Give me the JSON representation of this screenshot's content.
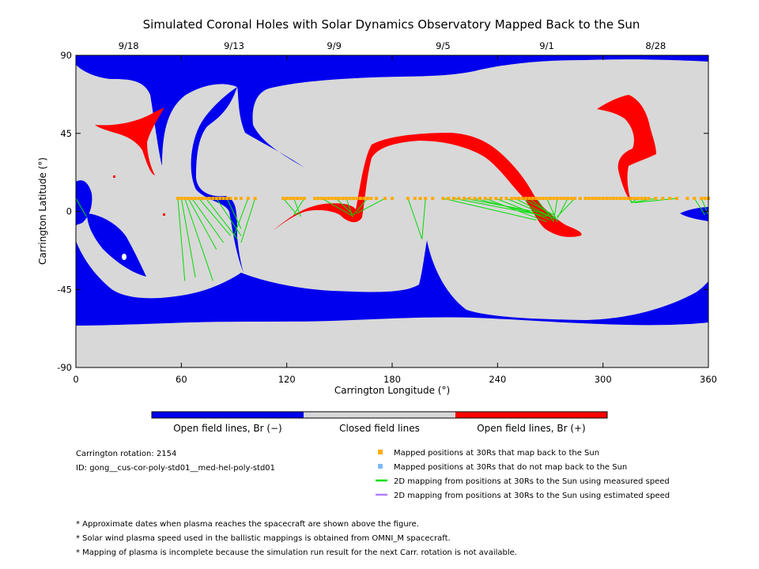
{
  "chart_data": {
    "type": "map",
    "title": "Simulated Coronal Holes with Solar Dynamics Observatory Mapped Back to the Sun",
    "xlabel": "Carrington Longitude (°)",
    "ylabel": "Carrington Latitude (°)",
    "xlim": [
      0,
      360
    ],
    "ylim": [
      -90,
      90
    ],
    "x_ticks": [
      0,
      60,
      120,
      180,
      240,
      300,
      360
    ],
    "y_ticks": [
      90,
      45,
      0,
      -45,
      -90
    ],
    "top_dates": [
      {
        "label": "9/18",
        "lon": 30
      },
      {
        "label": "9/13",
        "lon": 90
      },
      {
        "label": "9/9",
        "lon": 147
      },
      {
        "label": "9/5",
        "lon": 209
      },
      {
        "label": "9/1",
        "lon": 268
      },
      {
        "label": "8/28",
        "lon": 330
      }
    ],
    "colors": {
      "open_negative": "#0000ee",
      "closed": "#d8d8d8",
      "open_positive": "#ff0000",
      "mapped_points": "#ffaa00",
      "unmapped_points": "#7fb8ff",
      "measured_speed_line": "#00dd00",
      "estimated_speed_line": "#b07fff"
    },
    "mapped_points_lat": 7.5,
    "mapped_points_lon": [
      58,
      60,
      62,
      64,
      66,
      68,
      70,
      72,
      74,
      76,
      78,
      80,
      82,
      84,
      86,
      88,
      91,
      94,
      98,
      102,
      118,
      120,
      122,
      124,
      126,
      128,
      130,
      136,
      138,
      140,
      142,
      144,
      146,
      148,
      150,
      152,
      154,
      156,
      158,
      160,
      162,
      164,
      166,
      168,
      171,
      176,
      180,
      189,
      193,
      196,
      199,
      203,
      209,
      212,
      215,
      218,
      221,
      224,
      227,
      230,
      233,
      236,
      239,
      242,
      245,
      248,
      250,
      252,
      254,
      256,
      258,
      260,
      262,
      264,
      266,
      268,
      270,
      272,
      274,
      276,
      278,
      280,
      282,
      284,
      287,
      290,
      292,
      294,
      296,
      298,
      300,
      302,
      304,
      306,
      308,
      310,
      312,
      314,
      316,
      318,
      320,
      322,
      324,
      326,
      330,
      334,
      338,
      342,
      348,
      352,
      356,
      358,
      360
    ],
    "mapping_lines": [
      {
        "from": [
          58,
          7.5
        ],
        "to": [
          62,
          -40
        ]
      },
      {
        "from": [
          60,
          7.5
        ],
        "to": [
          68,
          -38
        ]
      },
      {
        "from": [
          62,
          7.5
        ],
        "to": [
          78,
          -40
        ]
      },
      {
        "from": [
          64,
          7.5
        ],
        "to": [
          80,
          -22
        ]
      },
      {
        "from": [
          66,
          7.5
        ],
        "to": [
          84,
          -18
        ]
      },
      {
        "from": [
          70,
          7.5
        ],
        "to": [
          88,
          -14
        ]
      },
      {
        "from": [
          74,
          7.5
        ],
        "to": [
          92,
          -16
        ]
      },
      {
        "from": [
          80,
          7.5
        ],
        "to": [
          94,
          -14
        ]
      },
      {
        "from": [
          86,
          7.5
        ],
        "to": [
          94,
          -10
        ]
      },
      {
        "from": [
          98,
          7.5
        ],
        "to": [
          90,
          -14
        ]
      },
      {
        "from": [
          102,
          7.5
        ],
        "to": [
          94,
          -18
        ]
      },
      {
        "from": [
          118,
          7.5
        ],
        "to": [
          126,
          -2
        ]
      },
      {
        "from": [
          124,
          7.5
        ],
        "to": [
          128,
          -3
        ]
      },
      {
        "from": [
          130,
          7.5
        ],
        "to": [
          124,
          -2
        ]
      },
      {
        "from": [
          140,
          7.5
        ],
        "to": [
          158,
          -3
        ]
      },
      {
        "from": [
          148,
          7.5
        ],
        "to": [
          158,
          -2
        ]
      },
      {
        "from": [
          154,
          7.5
        ],
        "to": [
          157,
          -2
        ]
      },
      {
        "from": [
          166,
          7.5
        ],
        "to": [
          158,
          -2
        ]
      },
      {
        "from": [
          176,
          7.5
        ],
        "to": [
          160,
          -1
        ]
      },
      {
        "from": [
          189,
          7.5
        ],
        "to": [
          197,
          -16
        ]
      },
      {
        "from": [
          199,
          7.5
        ],
        "to": [
          197,
          -16
        ]
      },
      {
        "from": [
          209,
          7.5
        ],
        "to": [
          262,
          -5
        ]
      },
      {
        "from": [
          215,
          7.5
        ],
        "to": [
          264,
          -2
        ]
      },
      {
        "from": [
          221,
          7.5
        ],
        "to": [
          266,
          -1
        ]
      },
      {
        "from": [
          227,
          7.5
        ],
        "to": [
          268,
          -3
        ]
      },
      {
        "from": [
          233,
          7.5
        ],
        "to": [
          268,
          -6
        ]
      },
      {
        "from": [
          239,
          7.5
        ],
        "to": [
          270,
          -5
        ]
      },
      {
        "from": [
          245,
          7.5
        ],
        "to": [
          272,
          -4
        ]
      },
      {
        "from": [
          250,
          7.5
        ],
        "to": [
          270,
          -3
        ]
      },
      {
        "from": [
          254,
          7.5
        ],
        "to": [
          272,
          -2
        ]
      },
      {
        "from": [
          258,
          7.5
        ],
        "to": [
          274,
          -5
        ]
      },
      {
        "from": [
          262,
          7.5
        ],
        "to": [
          272,
          -6
        ]
      },
      {
        "from": [
          268,
          7.5
        ],
        "to": [
          274,
          -6
        ]
      },
      {
        "from": [
          274,
          7.5
        ],
        "to": [
          272,
          -5
        ]
      },
      {
        "from": [
          280,
          7.5
        ],
        "to": [
          274,
          -4
        ]
      },
      {
        "from": [
          284,
          7.5
        ],
        "to": [
          274,
          -3
        ]
      },
      {
        "from": [
          316,
          7.5
        ],
        "to": [
          316,
          5
        ]
      },
      {
        "from": [
          320,
          7.5
        ],
        "to": [
          316,
          5
        ]
      },
      {
        "from": [
          330,
          7.5
        ],
        "to": [
          316,
          5
        ]
      },
      {
        "from": [
          342,
          7.5
        ],
        "to": [
          318,
          5
        ]
      },
      {
        "from": [
          352,
          7.5
        ],
        "to": [
          358,
          -2
        ]
      },
      {
        "from": [
          356,
          7.5
        ],
        "to": [
          360,
          -2
        ]
      },
      {
        "from": [
          0,
          7.5
        ],
        "to": [
          6,
          -3
        ]
      }
    ],
    "regions_note": "Map regions: open field lines Br(-) (blue), closed field lines (gray), open field lines Br(+) (red)"
  },
  "colorbar": {
    "labels": [
      "Open field lines, Br (−)",
      "Closed field lines",
      "Open field lines, Br (+)"
    ]
  },
  "info": {
    "rotation": "Carrington rotation: 2154",
    "id": "ID: gong__cus-cor-poly-std01__med-hel-poly-std01"
  },
  "legend": [
    {
      "kind": "square",
      "color": "#ffaa00",
      "text": "Mapped positions at 30Rs that map back to the Sun"
    },
    {
      "kind": "square",
      "color": "#7fb8ff",
      "text": "Mapped positions at 30Rs that do not map back to the Sun"
    },
    {
      "kind": "line",
      "color": "#00dd00",
      "text": "2D mapping from positions at 30Rs to the Sun using measured speed"
    },
    {
      "kind": "line",
      "color": "#b07fff",
      "text": "2D mapping from positions at 30Rs to the Sun using estimated speed"
    }
  ],
  "notes": [
    "* Approximate dates when plasma reaches the spacecraft are shown above the figure.",
    "* Solar wind plasma speed used in the ballistic mappings is obtained from OMNI_M spacecraft.",
    "* Mapping of plasma is incomplete because the simulation run result for the next Carr. rotation is not available."
  ]
}
